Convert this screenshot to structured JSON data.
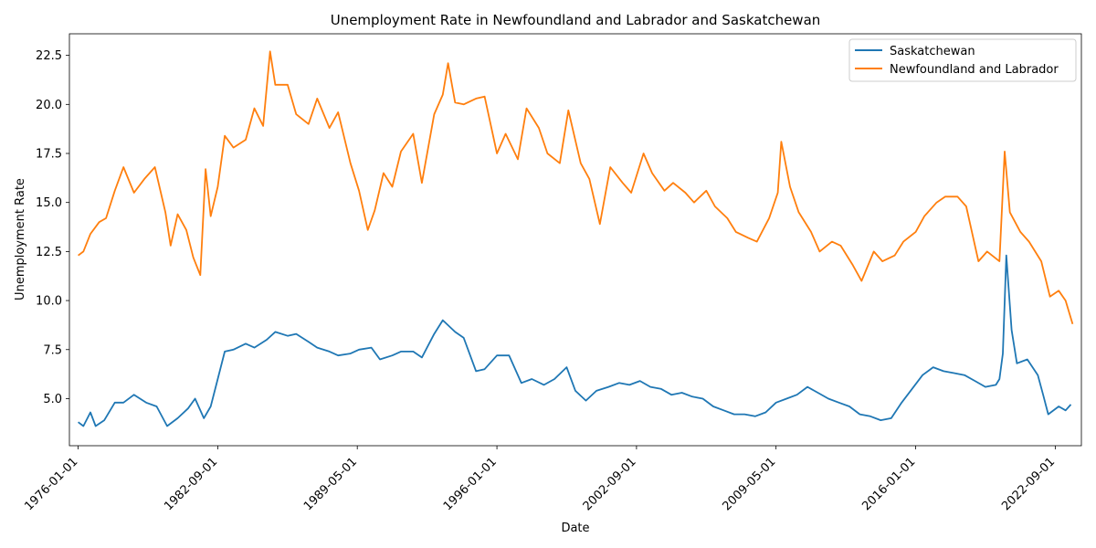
{
  "chart_data": {
    "type": "line",
    "title": "Unemployment Rate in Newfoundland and Labrador and Saskatchewan",
    "xlabel": "Date",
    "ylabel": "Unemployment Rate",
    "xlim": [
      "1975-08-01",
      "2023-12-01"
    ],
    "ylim": [
      2.6,
      23.6
    ],
    "x_ticks": [
      "1976-01-01",
      "1982-09-01",
      "1989-05-01",
      "1996-01-01",
      "2002-09-01",
      "2009-05-01",
      "2016-01-01",
      "2022-09-01"
    ],
    "y_ticks": [
      "5.0",
      "7.5",
      "10.0",
      "12.5",
      "15.0",
      "17.5",
      "20.0",
      "22.5"
    ],
    "grid": false,
    "legend_position": "top-right",
    "series": [
      {
        "name": "Saskatchewan",
        "color": "#1f77b4",
        "points": [
          [
            "1976-01-01",
            3.8
          ],
          [
            "1976-04-01",
            3.6
          ],
          [
            "1976-08-01",
            4.3
          ],
          [
            "1976-11-01",
            3.6
          ],
          [
            "1977-04-01",
            3.9
          ],
          [
            "1977-10-01",
            4.8
          ],
          [
            "1978-03-01",
            4.8
          ],
          [
            "1978-09-01",
            5.2
          ],
          [
            "1979-04-01",
            4.8
          ],
          [
            "1979-10-01",
            4.6
          ],
          [
            "1980-04-01",
            3.6
          ],
          [
            "1980-10-01",
            4.0
          ],
          [
            "1981-04-01",
            4.5
          ],
          [
            "1981-08-01",
            5.0
          ],
          [
            "1982-01-01",
            4.0
          ],
          [
            "1982-05-01",
            4.6
          ],
          [
            "1982-09-01",
            6.0
          ],
          [
            "1983-01-01",
            7.4
          ],
          [
            "1983-06-01",
            7.5
          ],
          [
            "1984-01-01",
            7.8
          ],
          [
            "1984-06-01",
            7.6
          ],
          [
            "1985-01-01",
            8.0
          ],
          [
            "1985-06-01",
            8.4
          ],
          [
            "1986-01-01",
            8.2
          ],
          [
            "1986-06-01",
            8.3
          ],
          [
            "1987-01-01",
            7.9
          ],
          [
            "1987-06-01",
            7.6
          ],
          [
            "1988-01-01",
            7.4
          ],
          [
            "1988-06-01",
            7.2
          ],
          [
            "1989-01-01",
            7.3
          ],
          [
            "1989-06-01",
            7.5
          ],
          [
            "1990-01-01",
            7.6
          ],
          [
            "1990-06-01",
            7.0
          ],
          [
            "1991-01-01",
            7.2
          ],
          [
            "1991-06-01",
            7.4
          ],
          [
            "1992-01-01",
            7.4
          ],
          [
            "1992-06-01",
            7.1
          ],
          [
            "1993-01-01",
            8.3
          ],
          [
            "1993-06-01",
            9.0
          ],
          [
            "1994-01-01",
            8.4
          ],
          [
            "1994-06-01",
            8.1
          ],
          [
            "1995-01-01",
            6.4
          ],
          [
            "1995-06-01",
            6.5
          ],
          [
            "1996-01-01",
            7.2
          ],
          [
            "1996-08-01",
            7.2
          ],
          [
            "1997-03-01",
            5.8
          ],
          [
            "1997-09-01",
            6.0
          ],
          [
            "1998-04-01",
            5.7
          ],
          [
            "1998-10-01",
            6.0
          ],
          [
            "1999-05-01",
            6.6
          ],
          [
            "1999-10-01",
            5.4
          ],
          [
            "2000-04-01",
            4.9
          ],
          [
            "2000-10-01",
            5.4
          ],
          [
            "2001-05-01",
            5.6
          ],
          [
            "2001-11-01",
            5.8
          ],
          [
            "2002-05-01",
            5.7
          ],
          [
            "2002-11-01",
            5.9
          ],
          [
            "2003-05-01",
            5.6
          ],
          [
            "2003-11-01",
            5.5
          ],
          [
            "2004-05-01",
            5.2
          ],
          [
            "2004-11-01",
            5.3
          ],
          [
            "2005-05-01",
            5.1
          ],
          [
            "2005-11-01",
            5.0
          ],
          [
            "2006-05-01",
            4.6
          ],
          [
            "2006-11-01",
            4.4
          ],
          [
            "2007-05-01",
            4.2
          ],
          [
            "2007-11-01",
            4.2
          ],
          [
            "2008-05-01",
            4.1
          ],
          [
            "2008-11-01",
            4.3
          ],
          [
            "2009-05-01",
            4.8
          ],
          [
            "2009-11-01",
            5.0
          ],
          [
            "2010-05-01",
            5.2
          ],
          [
            "2010-11-01",
            5.6
          ],
          [
            "2011-05-01",
            5.3
          ],
          [
            "2011-11-01",
            5.0
          ],
          [
            "2012-05-01",
            4.8
          ],
          [
            "2012-11-01",
            4.6
          ],
          [
            "2013-05-01",
            4.2
          ],
          [
            "2013-11-01",
            4.1
          ],
          [
            "2014-05-01",
            3.9
          ],
          [
            "2014-11-01",
            4.0
          ],
          [
            "2015-05-01",
            4.8
          ],
          [
            "2015-11-01",
            5.5
          ],
          [
            "2016-05-01",
            6.2
          ],
          [
            "2016-11-01",
            6.6
          ],
          [
            "2017-05-01",
            6.4
          ],
          [
            "2017-11-01",
            6.3
          ],
          [
            "2018-05-01",
            6.2
          ],
          [
            "2018-11-01",
            5.9
          ],
          [
            "2019-05-01",
            5.6
          ],
          [
            "2019-11-01",
            5.7
          ],
          [
            "2020-01-01",
            6.0
          ],
          [
            "2020-03-01",
            7.3
          ],
          [
            "2020-05-01",
            12.3
          ],
          [
            "2020-08-01",
            8.5
          ],
          [
            "2020-11-01",
            6.8
          ],
          [
            "2021-05-01",
            7.0
          ],
          [
            "2021-11-01",
            6.2
          ],
          [
            "2022-02-01",
            5.2
          ],
          [
            "2022-05-01",
            4.2
          ],
          [
            "2022-11-01",
            4.6
          ],
          [
            "2023-03-01",
            4.4
          ],
          [
            "2023-06-01",
            4.7
          ]
        ]
      },
      {
        "name": "Newfoundland and Labrador",
        "color": "#ff7f0e",
        "points": [
          [
            "1976-01-01",
            12.3
          ],
          [
            "1976-04-01",
            12.5
          ],
          [
            "1976-08-01",
            13.4
          ],
          [
            "1977-01-01",
            14.0
          ],
          [
            "1977-05-01",
            14.2
          ],
          [
            "1977-10-01",
            15.6
          ],
          [
            "1978-03-01",
            16.8
          ],
          [
            "1978-09-01",
            15.5
          ],
          [
            "1979-03-01",
            16.2
          ],
          [
            "1979-09-01",
            16.8
          ],
          [
            "1980-03-01",
            14.5
          ],
          [
            "1980-06-01",
            12.8
          ],
          [
            "1980-10-01",
            14.4
          ],
          [
            "1981-03-01",
            13.6
          ],
          [
            "1981-07-01",
            12.2
          ],
          [
            "1981-11-01",
            11.3
          ],
          [
            "1982-02-01",
            16.7
          ],
          [
            "1982-05-01",
            14.3
          ],
          [
            "1982-09-01",
            15.8
          ],
          [
            "1983-01-01",
            18.4
          ],
          [
            "1983-06-01",
            17.8
          ],
          [
            "1984-01-01",
            18.2
          ],
          [
            "1984-06-01",
            19.8
          ],
          [
            "1984-11-01",
            18.9
          ],
          [
            "1985-03-01",
            22.7
          ],
          [
            "1985-06-01",
            21.0
          ],
          [
            "1986-01-01",
            21.0
          ],
          [
            "1986-06-01",
            19.5
          ],
          [
            "1987-01-01",
            19.0
          ],
          [
            "1987-06-01",
            20.3
          ],
          [
            "1988-01-01",
            18.8
          ],
          [
            "1988-06-01",
            19.6
          ],
          [
            "1989-01-01",
            17.0
          ],
          [
            "1989-06-01",
            15.6
          ],
          [
            "1989-11-01",
            13.6
          ],
          [
            "1990-03-01",
            14.6
          ],
          [
            "1990-08-01",
            16.5
          ],
          [
            "1991-01-01",
            15.8
          ],
          [
            "1991-06-01",
            17.6
          ],
          [
            "1992-01-01",
            18.5
          ],
          [
            "1992-06-01",
            16.0
          ],
          [
            "1993-01-01",
            19.5
          ],
          [
            "1993-06-01",
            20.5
          ],
          [
            "1993-09-01",
            22.1
          ],
          [
            "1994-01-01",
            20.1
          ],
          [
            "1994-06-01",
            20.0
          ],
          [
            "1995-01-01",
            20.3
          ],
          [
            "1995-06-01",
            20.4
          ],
          [
            "1996-01-01",
            17.5
          ],
          [
            "1996-06-01",
            18.5
          ],
          [
            "1997-01-01",
            17.2
          ],
          [
            "1997-06-01",
            19.8
          ],
          [
            "1998-01-01",
            18.8
          ],
          [
            "1998-06-01",
            17.5
          ],
          [
            "1999-01-01",
            17.0
          ],
          [
            "1999-06-01",
            19.7
          ],
          [
            "2000-01-01",
            17.0
          ],
          [
            "2000-06-01",
            16.2
          ],
          [
            "2000-12-01",
            13.9
          ],
          [
            "2001-06-01",
            16.8
          ],
          [
            "2002-01-01",
            16.0
          ],
          [
            "2002-06-01",
            15.5
          ],
          [
            "2003-01-01",
            17.5
          ],
          [
            "2003-06-01",
            16.5
          ],
          [
            "2004-01-01",
            15.6
          ],
          [
            "2004-06-01",
            16.0
          ],
          [
            "2005-01-01",
            15.5
          ],
          [
            "2005-06-01",
            15.0
          ],
          [
            "2006-01-01",
            15.6
          ],
          [
            "2006-06-01",
            14.8
          ],
          [
            "2007-01-01",
            14.2
          ],
          [
            "2007-06-01",
            13.5
          ],
          [
            "2008-01-01",
            13.2
          ],
          [
            "2008-06-01",
            13.0
          ],
          [
            "2009-01-01",
            14.2
          ],
          [
            "2009-06-01",
            15.5
          ],
          [
            "2009-08-01",
            18.1
          ],
          [
            "2010-01-01",
            15.8
          ],
          [
            "2010-06-01",
            14.5
          ],
          [
            "2011-01-01",
            13.5
          ],
          [
            "2011-06-01",
            12.5
          ],
          [
            "2012-01-01",
            13.0
          ],
          [
            "2012-06-01",
            12.8
          ],
          [
            "2013-01-01",
            11.8
          ],
          [
            "2013-06-01",
            11.0
          ],
          [
            "2014-01-01",
            12.5
          ],
          [
            "2014-06-01",
            12.0
          ],
          [
            "2015-01-01",
            12.3
          ],
          [
            "2015-06-01",
            13.0
          ],
          [
            "2016-01-01",
            13.5
          ],
          [
            "2016-06-01",
            14.3
          ],
          [
            "2017-01-01",
            15.0
          ],
          [
            "2017-06-01",
            15.3
          ],
          [
            "2018-01-01",
            15.3
          ],
          [
            "2018-06-01",
            14.8
          ],
          [
            "2019-01-01",
            12.0
          ],
          [
            "2019-06-01",
            12.5
          ],
          [
            "2020-01-01",
            12.0
          ],
          [
            "2020-04-01",
            17.6
          ],
          [
            "2020-07-01",
            14.5
          ],
          [
            "2021-01-01",
            13.5
          ],
          [
            "2021-06-01",
            13.0
          ],
          [
            "2022-01-01",
            12.0
          ],
          [
            "2022-06-01",
            10.2
          ],
          [
            "2022-11-01",
            10.5
          ],
          [
            "2023-03-01",
            10.0
          ],
          [
            "2023-07-01",
            8.8
          ]
        ]
      }
    ]
  }
}
